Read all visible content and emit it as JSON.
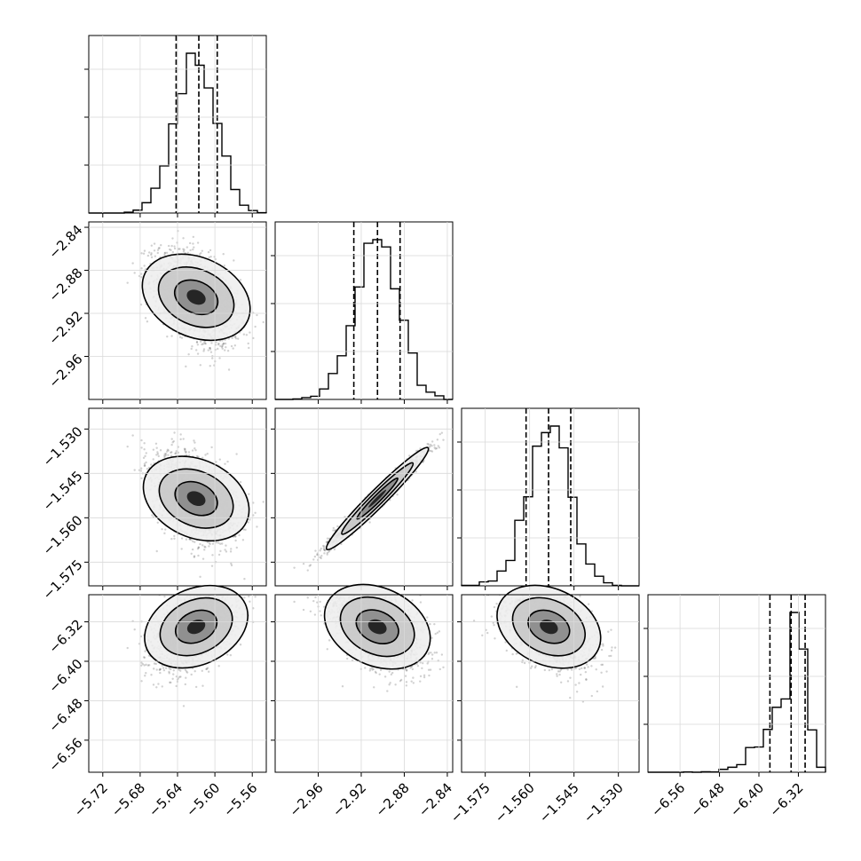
{
  "chart_data": {
    "type": "corner",
    "parameters": [
      {
        "range": [
          -5.735,
          -5.545
        ],
        "ticks": [
          "-5.72",
          "-5.68",
          "-5.64",
          "-5.60",
          "-5.56"
        ],
        "tick_values": [
          -5.72,
          -5.68,
          -5.64,
          -5.6,
          -5.56
        ],
        "mean": -5.62,
        "sd": 0.022,
        "quantiles": [
          -5.6415,
          -5.6172,
          -5.5975
        ]
      },
      {
        "range": [
          -3.0,
          -2.835
        ],
        "ticks": [
          "-2.96",
          "-2.92",
          "-2.88",
          "-2.84"
        ],
        "tick_values": [
          -2.96,
          -2.92,
          -2.88,
          -2.84
        ],
        "mean": -2.905,
        "sd": 0.02,
        "quantiles": [
          -2.9269,
          -2.9049,
          -2.8839
        ]
      },
      {
        "range": [
          -1.583,
          -1.523
        ],
        "ticks": [
          "-1.575",
          "-1.560",
          "-1.545",
          "-1.530"
        ],
        "tick_values": [
          -1.575,
          -1.56,
          -1.545,
          -1.53
        ],
        "mean": -1.5535,
        "sd": 0.007,
        "quantiles": [
          -1.5612,
          -1.5536,
          -1.5461
        ]
      },
      {
        "range": [
          -6.625,
          -6.265
        ],
        "ticks": [
          "-6.56",
          "-6.48",
          "-6.40",
          "-6.32"
        ],
        "tick_values": [
          -6.56,
          -6.48,
          -6.4,
          -6.32
        ],
        "mean": -6.33,
        "sd": 0.04,
        "quantiles": [
          -6.3777,
          -6.3347,
          -6.3063
        ]
      }
    ],
    "grid": true,
    "histogram_style": "step",
    "quantile_lines": "dashed"
  }
}
